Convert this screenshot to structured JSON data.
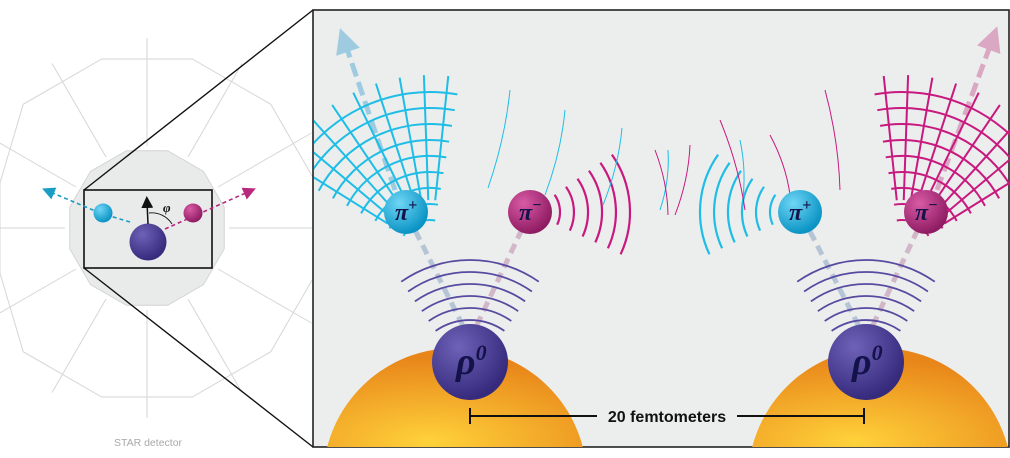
{
  "detector": {
    "label": "STAR detector",
    "angle_symbol": "φ"
  },
  "particles": {
    "pi_plus": {
      "symbol": "π",
      "charge": "+"
    },
    "pi_minus": {
      "symbol": "π",
      "charge": "−"
    },
    "rho": {
      "symbol": "ρ",
      "superscript": "0"
    }
  },
  "scale_bar": {
    "label": "20 femtometers"
  },
  "colors": {
    "pi_plus": "#19b3e0",
    "pi_minus": "#b8287e",
    "rho": "#4a3d94",
    "nucleus": "#f29a1c",
    "panel_bg": "#eceeee",
    "wave_cyan": "#1fbde6",
    "wave_magenta": "#c8197f",
    "wave_purple": "#574aa0"
  }
}
